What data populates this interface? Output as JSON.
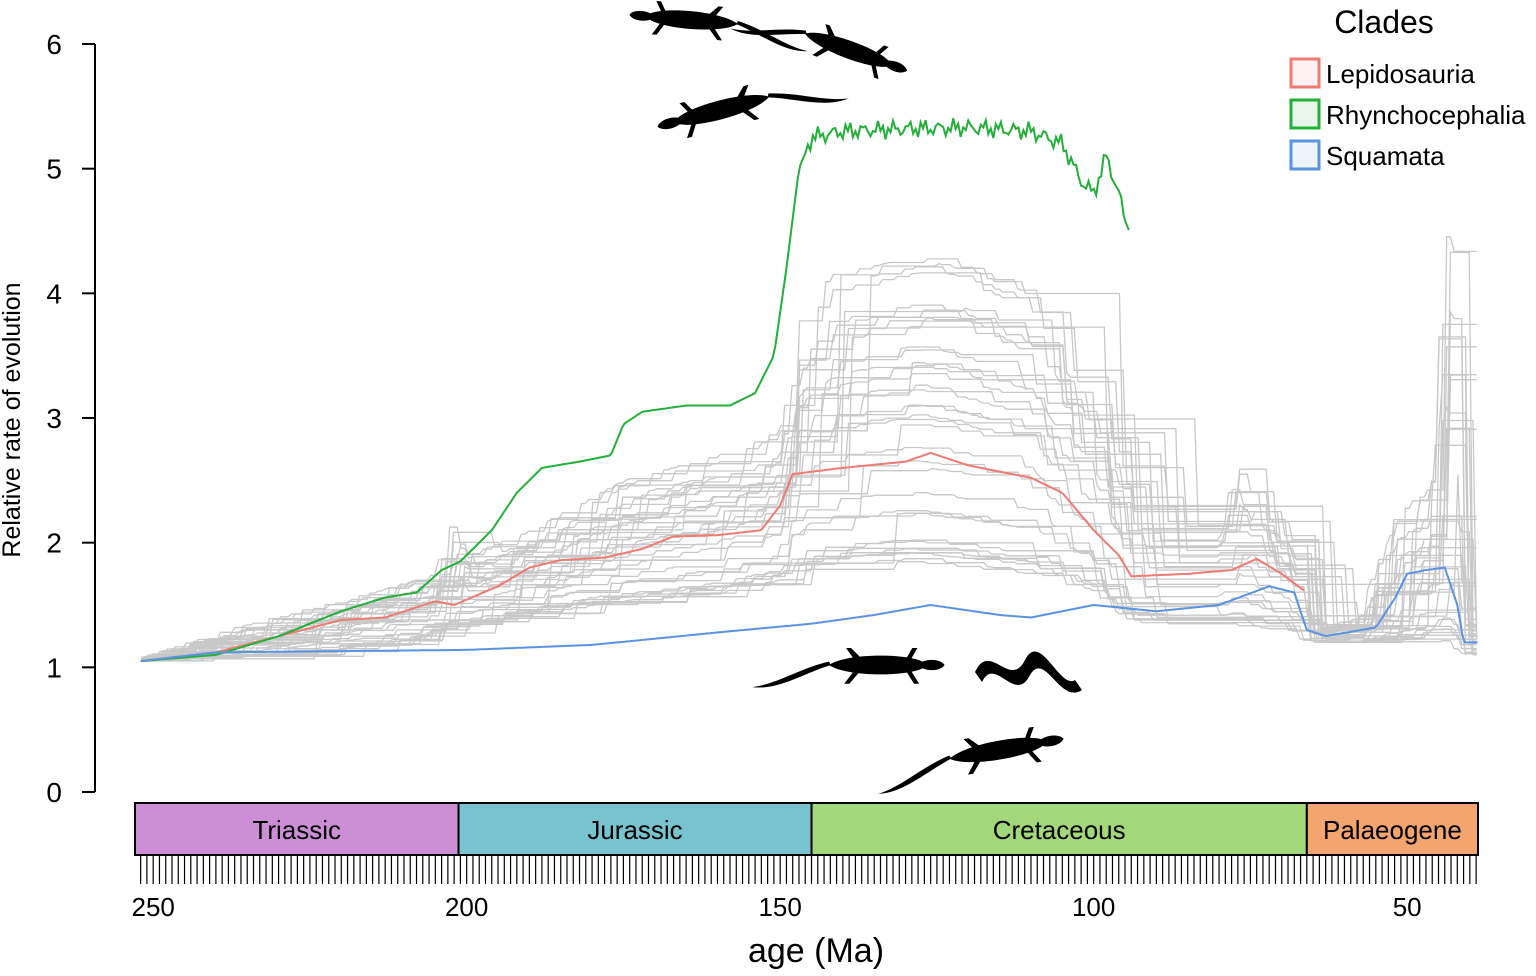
{
  "chart_data": {
    "type": "line",
    "xlabel": "age (Ma)",
    "ylabel": "Relative rate of evolution",
    "xlim": [
      252.9,
      38.7
    ],
    "ylim": [
      0,
      6
    ],
    "x_reversed": true,
    "xticks": [
      250,
      200,
      150,
      100,
      50
    ],
    "yticks": [
      0,
      1,
      2,
      3,
      4,
      5,
      6
    ],
    "grid": false,
    "legend": {
      "title": "Clades",
      "placement": "top-right"
    },
    "periods": [
      {
        "name": "Triassic",
        "start": 252.9,
        "end": 201.3,
        "color": "#cc8fd6"
      },
      {
        "name": "Jurassic",
        "start": 201.3,
        "end": 145,
        "color": "#78c3d0"
      },
      {
        "name": "Cretaceous",
        "start": 145,
        "end": 66,
        "color": "#a3d87a"
      },
      {
        "name": "Palaeogene",
        "start": 66,
        "end": 38.7,
        "color": "#f4a46e"
      }
    ],
    "series": [
      {
        "name": "Lepidosauria",
        "color": "#f07a74",
        "x": [
          252,
          240,
          230,
          220,
          213,
          205,
          202,
          195,
          190,
          185,
          178,
          172,
          167,
          160,
          153,
          150,
          148,
          140,
          130,
          126,
          120,
          110,
          105,
          100,
          96,
          94,
          85,
          78,
          74,
          70,
          66
        ],
        "y": [
          1.05,
          1.12,
          1.25,
          1.38,
          1.4,
          1.53,
          1.5,
          1.65,
          1.8,
          1.86,
          1.88,
          1.95,
          2.05,
          2.06,
          2.1,
          2.3,
          2.55,
          2.6,
          2.65,
          2.72,
          2.62,
          2.52,
          2.4,
          2.1,
          1.9,
          1.73,
          1.75,
          1.78,
          1.87,
          1.75,
          1.6
        ]
      },
      {
        "name": "Rhynchocephalia",
        "color": "#22b03a",
        "x": [
          252,
          240,
          230,
          220,
          213,
          208,
          204,
          201,
          196,
          192,
          188,
          182,
          177,
          175,
          172,
          165,
          158,
          154,
          151,
          149,
          147,
          145,
          140,
          130,
          120,
          110,
          105,
          102,
          100,
          98,
          96,
          94.5,
          94
        ],
        "y": [
          1.05,
          1.1,
          1.25,
          1.45,
          1.56,
          1.6,
          1.78,
          1.85,
          2.1,
          2.4,
          2.6,
          2.65,
          2.7,
          2.95,
          3.05,
          3.1,
          3.1,
          3.2,
          3.5,
          4.2,
          5.0,
          5.25,
          5.3,
          5.32,
          5.33,
          5.3,
          5.2,
          4.9,
          4.8,
          5.1,
          4.8,
          4.5,
          4.9
        ]
      },
      {
        "name": "Squamata",
        "color": "#5b93e3",
        "x": [
          252,
          240,
          220,
          200,
          180,
          160,
          145,
          135,
          126,
          115,
          110,
          100,
          96,
          90,
          80,
          72,
          68,
          66,
          63,
          55,
          52,
          50,
          47,
          44,
          42,
          41,
          38.7
        ],
        "y": [
          1.05,
          1.12,
          1.13,
          1.14,
          1.18,
          1.28,
          1.35,
          1.42,
          1.5,
          1.42,
          1.4,
          1.5,
          1.48,
          1.45,
          1.5,
          1.65,
          1.6,
          1.3,
          1.25,
          1.32,
          1.55,
          1.75,
          1.78,
          1.8,
          1.5,
          1.2,
          1.2
        ]
      }
    ],
    "replicates_envelope": {
      "color": "#c8c8c8",
      "upper": {
        "x": [
          252,
          235,
          215,
          205,
          203,
          200,
          190,
          175,
          160,
          150,
          148,
          142,
          128,
          120,
          110,
          105,
          100,
          96,
          94,
          80,
          78,
          72,
          67,
          65,
          58,
          52,
          46,
          44,
          42,
          41,
          38.7
        ],
        "y": [
          1.08,
          1.35,
          1.6,
          1.75,
          2.2,
          1.9,
          2.1,
          2.5,
          2.7,
          2.9,
          3.7,
          4.15,
          4.3,
          4.2,
          4.0,
          3.5,
          3.2,
          2.8,
          2.3,
          2.3,
          2.7,
          2.2,
          2.0,
          1.3,
          1.4,
          2.2,
          2.5,
          4.6,
          4.4,
          1.4,
          1.3
        ]
      },
      "lower": {
        "x": [
          252,
          230,
          210,
          200,
          180,
          160,
          150,
          145,
          130,
          110,
          100,
          94,
          80,
          70,
          66,
          55,
          46,
          42,
          38.7
        ],
        "y": [
          1.05,
          1.1,
          1.2,
          1.35,
          1.5,
          1.6,
          1.7,
          1.8,
          1.85,
          1.75,
          1.6,
          1.35,
          1.35,
          1.3,
          1.2,
          1.2,
          1.25,
          1.1,
          1.1
        ]
      }
    }
  }
}
